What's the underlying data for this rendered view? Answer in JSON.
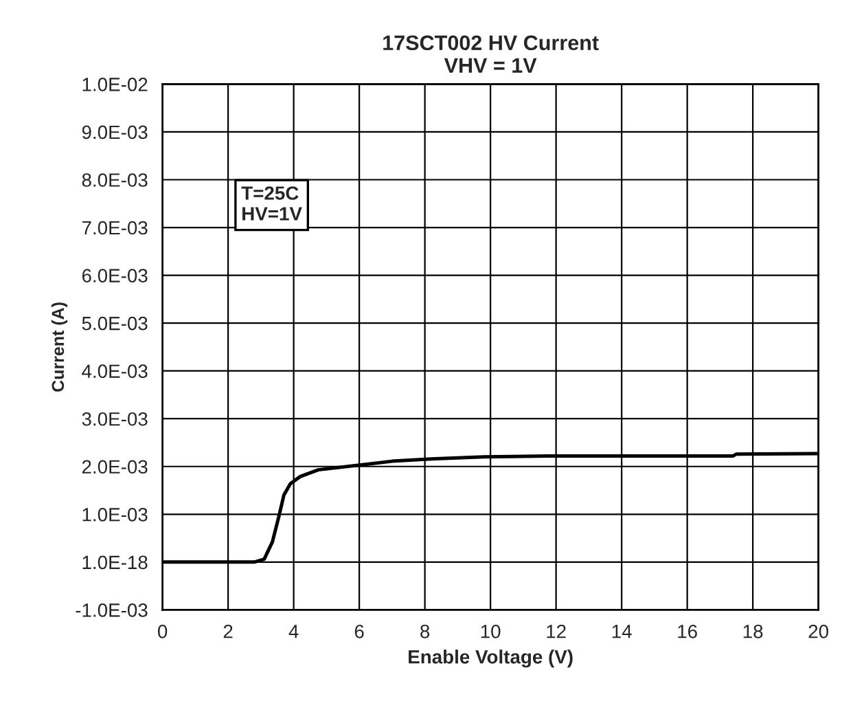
{
  "chart_data": {
    "type": "line",
    "title": "17SCT002 HV Current\nVHV = 1V",
    "xlabel": "Enable Voltage (V)",
    "ylabel": "Current (A)",
    "annotations": [
      "T=25C\nHV=1V"
    ],
    "series": [
      {
        "color": "#000000",
        "x": [
          0,
          2.8,
          3.1,
          3.35,
          3.55,
          3.7,
          3.9,
          4.2,
          4.75,
          6,
          7,
          8.2,
          9.8,
          11.8,
          17.4,
          17.5,
          20
        ],
        "values": [
          0,
          0,
          6e-05,
          0.00042,
          0.00096,
          0.0014,
          0.00164,
          0.00179,
          0.00193,
          0.00203,
          0.00211,
          0.00216,
          0.0022,
          0.00222,
          0.00222,
          0.00226,
          0.00227
        ]
      }
    ],
    "xlim": [
      0,
      20
    ],
    "xticks": [
      0,
      2,
      4,
      6,
      8,
      10,
      12,
      14,
      16,
      18,
      20
    ],
    "ylim": [
      -0.001,
      0.01
    ],
    "yticks": [
      {
        "value": -0.001,
        "label": "-1.0E-03"
      },
      {
        "value": 0,
        "label": "1.0E-18"
      },
      {
        "value": 0.001,
        "label": "1.0E-03"
      },
      {
        "value": 0.002,
        "label": "2.0E-03"
      },
      {
        "value": 0.003,
        "label": "3.0E-03"
      },
      {
        "value": 0.004,
        "label": "4.0E-03"
      },
      {
        "value": 0.005,
        "label": "5.0E-03"
      },
      {
        "value": 0.006,
        "label": "6.0E-03"
      },
      {
        "value": 0.007,
        "label": "7.0E-03"
      },
      {
        "value": 0.008,
        "label": "8.0E-03"
      },
      {
        "value": 0.009,
        "label": "9.0E-03"
      },
      {
        "value": 0.01,
        "label": "1.0E-02"
      }
    ],
    "grid": true,
    "legend": false,
    "marker": "none",
    "line_style": "solid"
  }
}
